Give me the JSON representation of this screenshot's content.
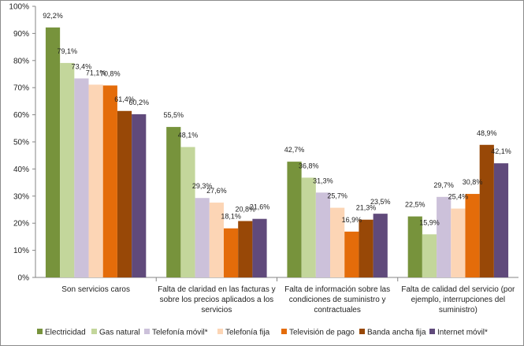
{
  "chart_data": {
    "type": "bar",
    "title": "",
    "xlabel": "",
    "ylabel": "",
    "ylim": [
      0,
      100
    ],
    "y_ticks": [
      "0%",
      "10%",
      "20%",
      "30%",
      "40%",
      "50%",
      "60%",
      "70%",
      "80%",
      "90%",
      "100%"
    ],
    "grid": false,
    "legend_position": "bottom",
    "categories": [
      [
        "Son servicios caros"
      ],
      [
        "Falta de claridad en las facturas y",
        "sobre los precios aplicados a los",
        "servicios"
      ],
      [
        "Falta de información sobre las",
        "condiciones de suministro y",
        "contractuales"
      ],
      [
        "Falta de calidad del servicio (por",
        "ejemplo, interrupciones del",
        "suministro)"
      ]
    ],
    "series": [
      {
        "name": "Electricidad",
        "color": "#77933c",
        "values": [
          92.2,
          55.5,
          42.7,
          22.5
        ],
        "labels": [
          "92,2%",
          "55,5%",
          "42,7%",
          "22,5%"
        ]
      },
      {
        "name": "Gas natural",
        "color": "#c3d69b",
        "values": [
          79.1,
          48.1,
          36.8,
          15.9
        ],
        "labels": [
          "79,1%",
          "48,1%",
          "36,8%",
          "15,9%"
        ]
      },
      {
        "name": "Telefonía móvil*",
        "color": "#ccc1da",
        "values": [
          73.4,
          29.3,
          31.3,
          29.7
        ],
        "labels": [
          "73,4%",
          "29,3%",
          "31,3%",
          "29,7%"
        ]
      },
      {
        "name": "Telefonía fija",
        "color": "#fcd5b5",
        "values": [
          71.1,
          27.6,
          25.7,
          25.4
        ],
        "labels": [
          "71,1%",
          "27,6%",
          "25,7%",
          "25,4%"
        ]
      },
      {
        "name": "Televisión de pago",
        "color": "#e46c0a",
        "values": [
          70.8,
          18.1,
          16.9,
          30.8
        ],
        "labels": [
          "70,8%",
          "18,1%",
          "16,9%",
          "30,8%"
        ]
      },
      {
        "name": "Banda ancha fija",
        "color": "#984807",
        "values": [
          61.4,
          20.8,
          21.3,
          48.9
        ],
        "labels": [
          "61,4%",
          "20,8%",
          "21,3%",
          "48,9%"
        ]
      },
      {
        "name": "Internet móvil*",
        "color": "#604a7b",
        "values": [
          60.2,
          21.6,
          23.5,
          42.1
        ],
        "labels": [
          "60,2%",
          "21,6%",
          "23,5%",
          "42,1%"
        ]
      }
    ]
  }
}
